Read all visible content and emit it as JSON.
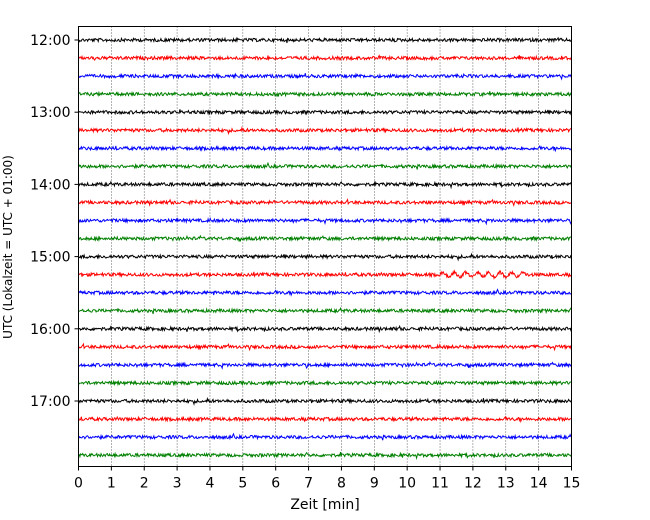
{
  "chart_data": {
    "type": "line",
    "title": "",
    "xlabel": "Zeit  [min]",
    "ylabel": "UTC (Lokalzeit = UTC + 01:00)",
    "xlim": [
      0,
      15
    ],
    "x_ticks": [
      "0",
      "1",
      "2",
      "3",
      "4",
      "5",
      "6",
      "7",
      "8",
      "9",
      "10",
      "11",
      "12",
      "13",
      "14",
      "15"
    ],
    "y_ticks": [
      "12:00",
      "13:00",
      "14:00",
      "15:00",
      "16:00",
      "17:00"
    ],
    "grid": "vertical dotted",
    "trace_colors": [
      "#000000",
      "#ff0000",
      "#0000ff",
      "#008000"
    ],
    "traces": [
      {
        "start": "12:00",
        "color": "#000000"
      },
      {
        "start": "12:15",
        "color": "#ff0000"
      },
      {
        "start": "12:30",
        "color": "#0000ff"
      },
      {
        "start": "12:45",
        "color": "#008000"
      },
      {
        "start": "13:00",
        "color": "#000000"
      },
      {
        "start": "13:15",
        "color": "#ff0000"
      },
      {
        "start": "13:30",
        "color": "#0000ff"
      },
      {
        "start": "13:45",
        "color": "#008000"
      },
      {
        "start": "14:00",
        "color": "#000000"
      },
      {
        "start": "14:15",
        "color": "#ff0000"
      },
      {
        "start": "14:30",
        "color": "#0000ff"
      },
      {
        "start": "14:45",
        "color": "#008000"
      },
      {
        "start": "15:00",
        "color": "#000000"
      },
      {
        "start": "15:15",
        "color": "#ff0000"
      },
      {
        "start": "15:30",
        "color": "#0000ff"
      },
      {
        "start": "15:45",
        "color": "#008000"
      },
      {
        "start": "16:00",
        "color": "#000000"
      },
      {
        "start": "16:15",
        "color": "#ff0000"
      },
      {
        "start": "16:30",
        "color": "#0000ff"
      },
      {
        "start": "16:45",
        "color": "#008000"
      },
      {
        "start": "17:00",
        "color": "#000000"
      },
      {
        "start": "17:15",
        "color": "#ff0000"
      },
      {
        "start": "17:30",
        "color": "#0000ff"
      },
      {
        "start": "17:45",
        "color": "#008000"
      }
    ]
  }
}
